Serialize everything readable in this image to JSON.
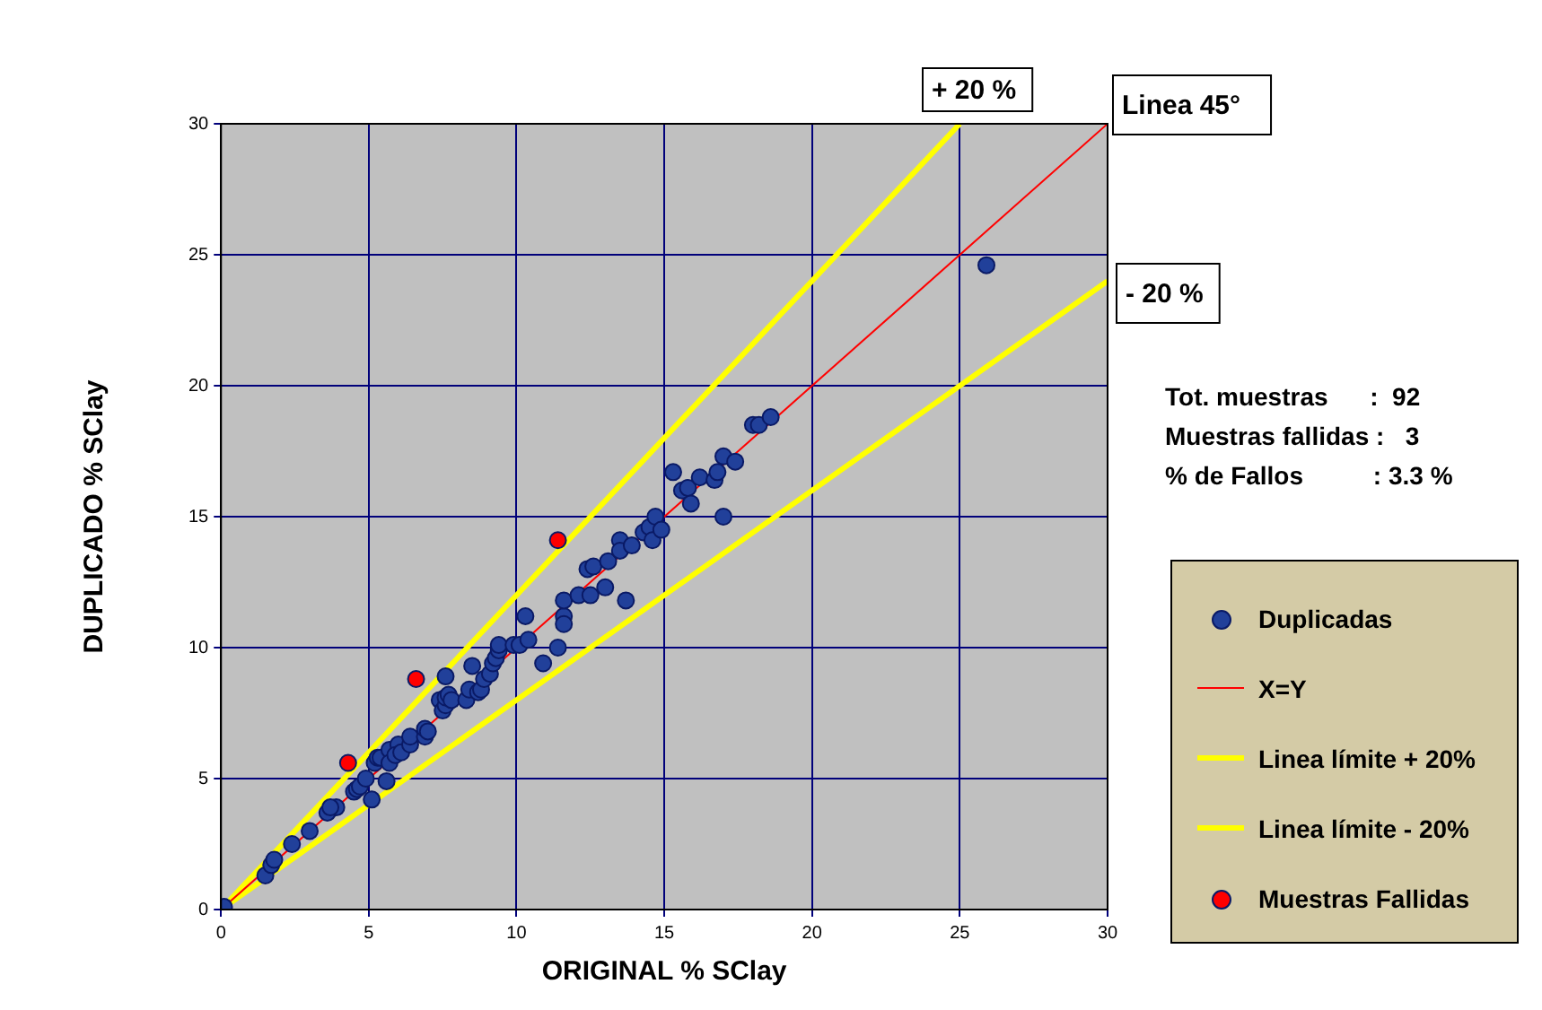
{
  "chart_data": {
    "type": "scatter",
    "xlabel": "ORIGINAL % SClay",
    "ylabel": "DUPLICADO % SClay",
    "xlim": [
      0,
      30
    ],
    "ylim": [
      0,
      30
    ],
    "xticks": [
      0,
      5,
      10,
      15,
      20,
      25,
      30
    ],
    "yticks": [
      0,
      5,
      10,
      15,
      20,
      25,
      30
    ],
    "grid": true,
    "legend": "right",
    "series": [
      {
        "name": "Duplicadas",
        "type": "scatter",
        "marker": "circle",
        "color": "#21409a",
        "x": [
          0.1,
          1.5,
          1.7,
          1.8,
          2.4,
          3.0,
          3.6,
          3.9,
          3.7,
          4.5,
          4.6,
          4.7,
          4.9,
          5.1,
          5.6,
          5.2,
          5.3,
          5.4,
          5.7,
          5.7,
          6.0,
          5.9,
          6.1,
          6.4,
          6.4,
          6.9,
          6.9,
          7.0,
          7.4,
          7.5,
          7.6,
          7.6,
          7.7,
          7.6,
          7.8,
          8.3,
          8.4,
          8.5,
          8.7,
          8.8,
          8.9,
          9.1,
          9.2,
          9.3,
          9.4,
          9.4,
          9.9,
          10.1,
          10.4,
          10.3,
          10.9,
          11.4,
          11.6,
          11.6,
          11.6,
          12.1,
          12.5,
          13.0,
          13.7,
          12.4,
          12.6,
          13.1,
          13.5,
          13.5,
          13.9,
          14.3,
          14.5,
          14.6,
          14.7,
          14.9,
          15.3,
          15.6,
          15.8,
          15.9,
          16.2,
          16.7,
          16.8,
          17.0,
          17.0,
          17.4,
          18.0,
          18.2,
          18.6,
          25.9
        ],
        "values": [
          0.1,
          1.3,
          1.7,
          1.9,
          2.5,
          3.0,
          3.7,
          3.9,
          3.9,
          4.5,
          4.6,
          4.7,
          5.0,
          4.2,
          4.9,
          5.6,
          5.8,
          5.8,
          6.1,
          5.6,
          6.3,
          5.9,
          6.0,
          6.3,
          6.6,
          6.6,
          6.9,
          6.8,
          8.0,
          7.6,
          7.8,
          8.1,
          8.2,
          8.9,
          8.0,
          8.0,
          8.4,
          9.3,
          8.3,
          8.4,
          8.8,
          9.0,
          9.4,
          9.6,
          9.9,
          10.1,
          10.1,
          10.1,
          10.3,
          11.2,
          9.4,
          10.0,
          11.2,
          10.9,
          11.8,
          12.0,
          12.0,
          12.3,
          11.8,
          13.0,
          13.1,
          13.3,
          14.1,
          13.7,
          13.9,
          14.4,
          14.6,
          14.1,
          15.0,
          14.5,
          16.7,
          16.0,
          16.1,
          15.5,
          16.5,
          16.4,
          16.7,
          17.3,
          15.0,
          17.1,
          18.5,
          18.5,
          18.8,
          24.6
        ]
      },
      {
        "name": "X=Y",
        "type": "line",
        "color": "#ff0000",
        "x": [
          0,
          30
        ],
        "values": [
          0,
          30
        ]
      },
      {
        "name": "Linea límite + 20%",
        "type": "line",
        "color": "#ffff00",
        "x": [
          0,
          25
        ],
        "values": [
          0,
          30
        ]
      },
      {
        "name": "Linea límite - 20%",
        "type": "line",
        "color": "#ffff00",
        "x": [
          0,
          30
        ],
        "values": [
          0,
          24
        ]
      },
      {
        "name": "Muestras Fallidas",
        "type": "scatter",
        "marker": "circle",
        "color": "#ff0000",
        "x": [
          4.3,
          6.6,
          11.4
        ],
        "values": [
          5.6,
          8.8,
          14.1
        ]
      }
    ],
    "annotations": [
      "+ 20 %",
      "Linea 45°",
      "- 20 %",
      "Tot. muestras      :  92",
      "Muestras fallidas :   3",
      "% de Fallos          : 3.3 %"
    ]
  }
}
